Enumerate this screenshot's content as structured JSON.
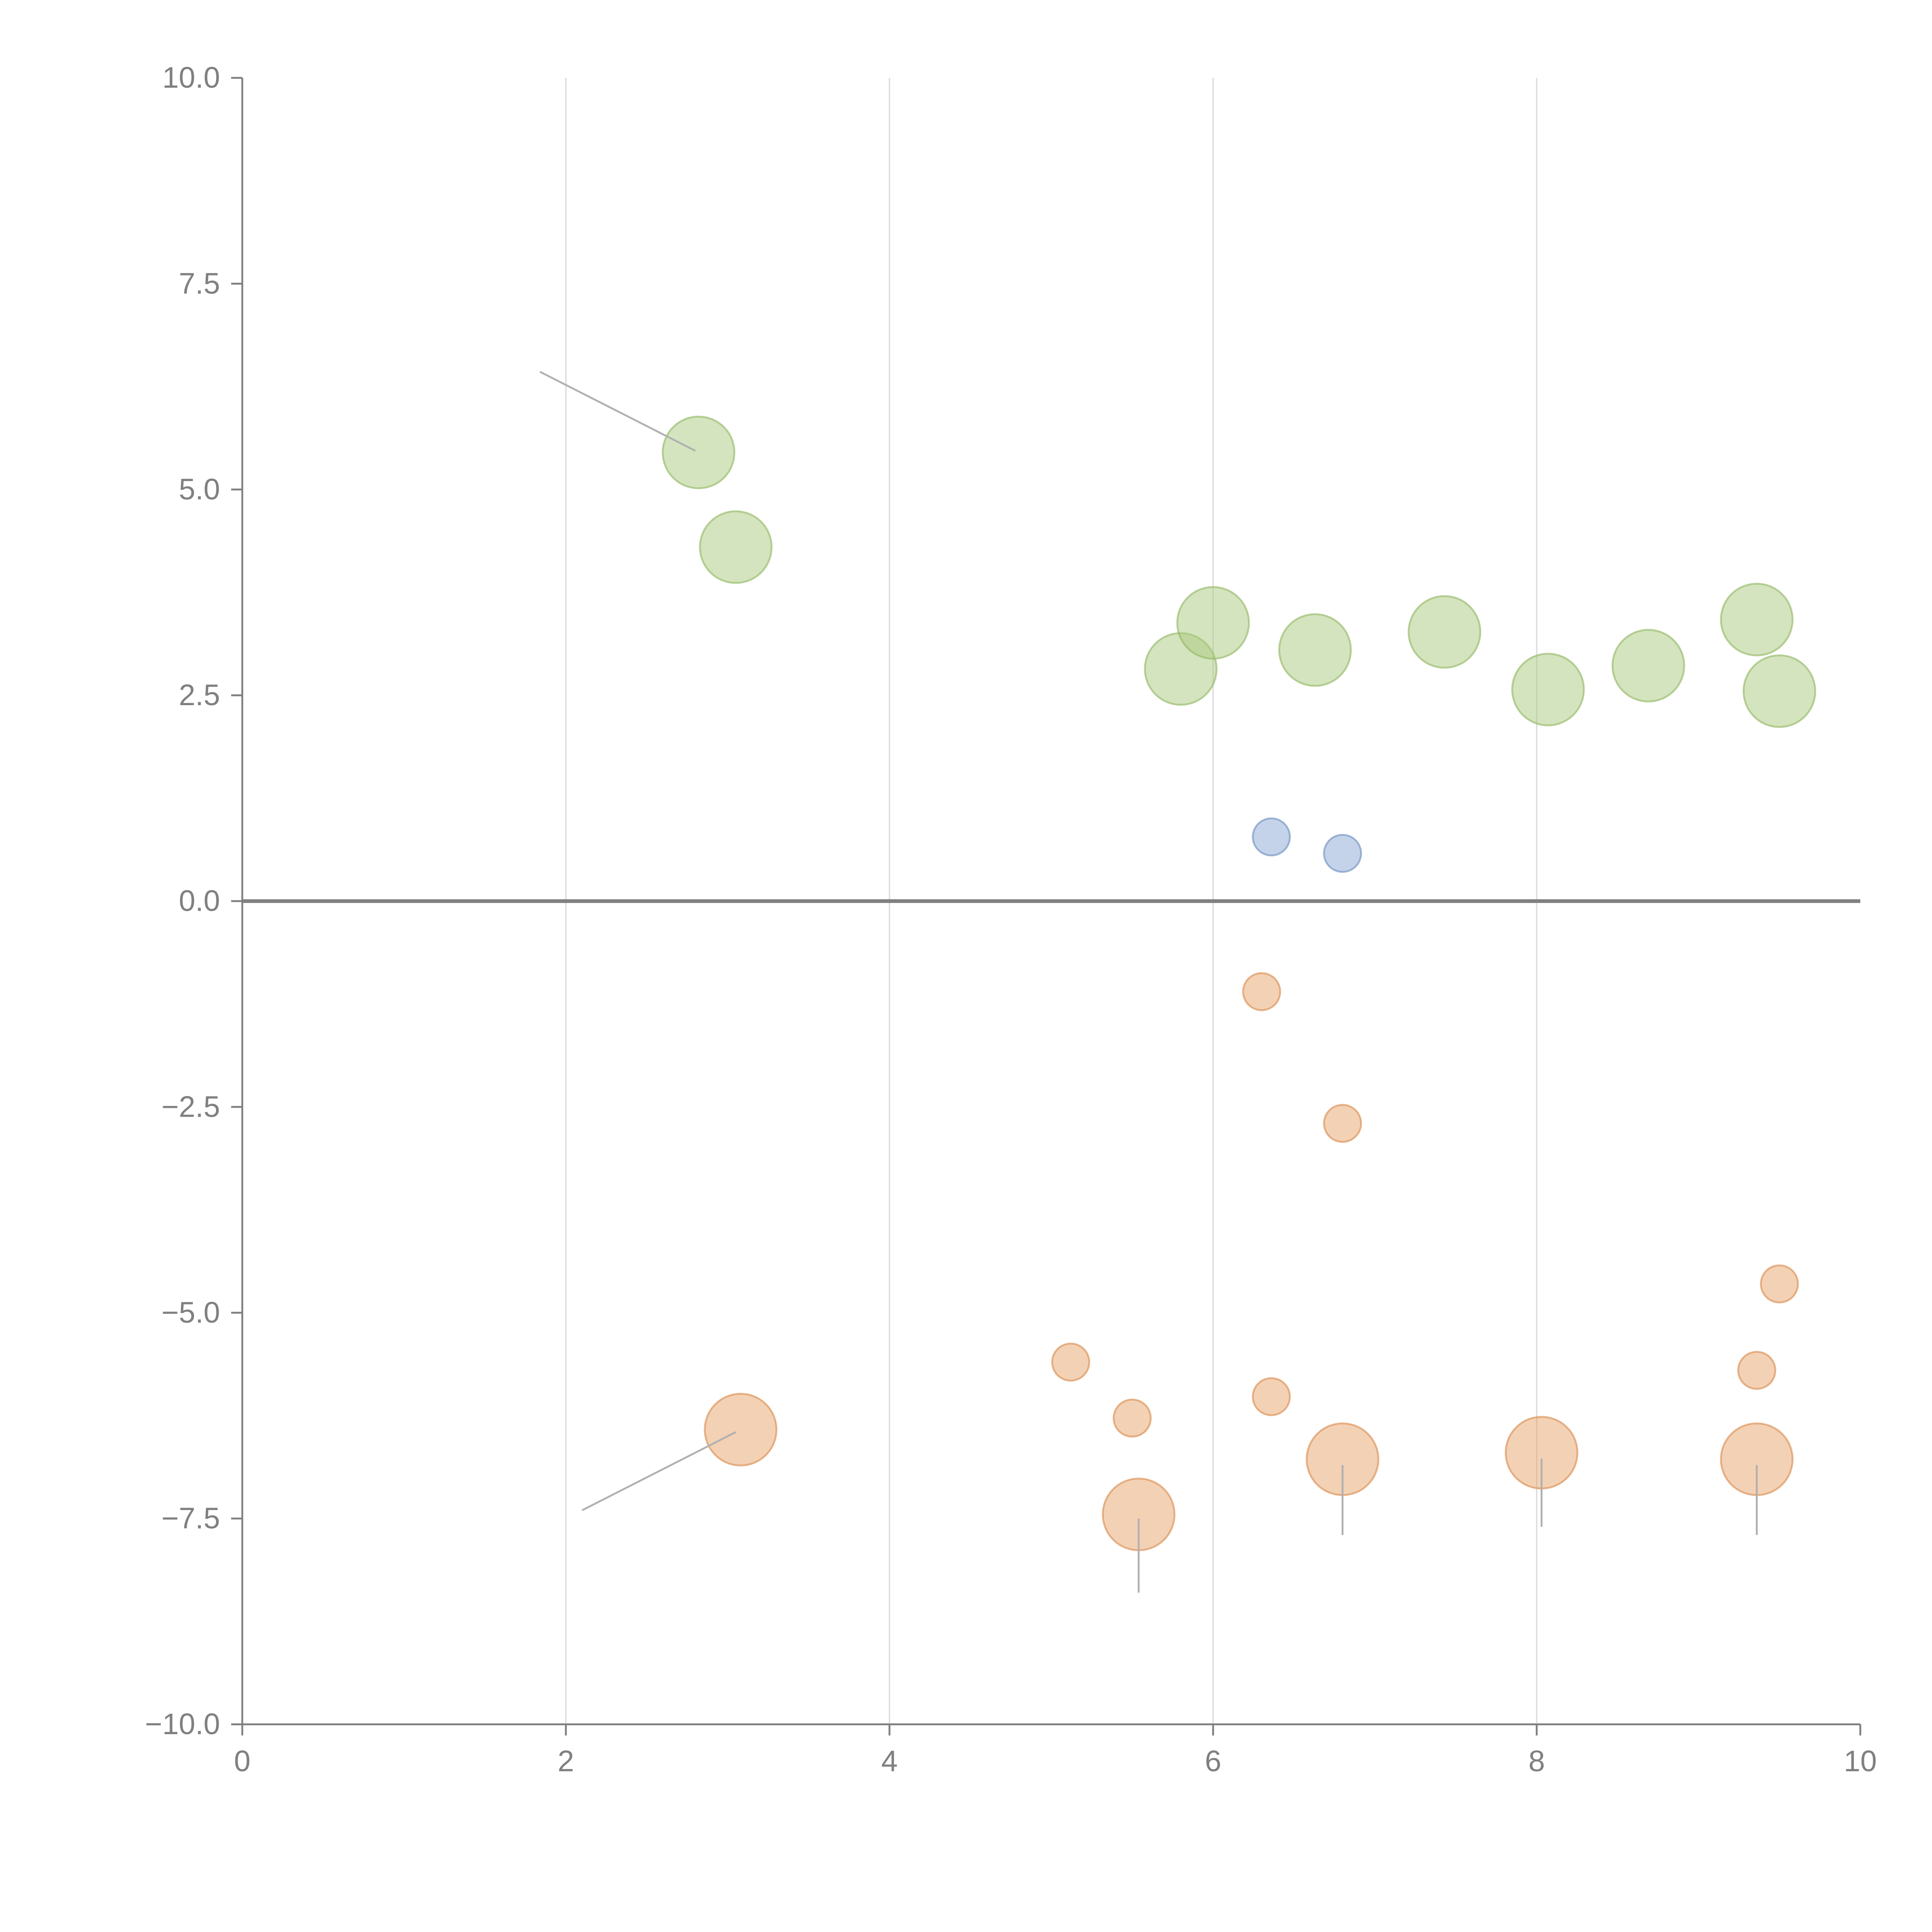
{
  "chart_data": {
    "type": "scatter",
    "title": "",
    "xlabel": "",
    "ylabel": "",
    "xlim": [
      0,
      10
    ],
    "ylim": [
      -10,
      10
    ],
    "grid": "vertical",
    "x_ticks": [
      "0",
      "2",
      "4",
      "6",
      "8",
      "10"
    ],
    "x_tick_values": [
      0,
      2,
      4,
      6,
      8,
      10
    ],
    "y_ticks": [
      "10.0",
      "7.5",
      "5.0",
      "2.5",
      "0.0",
      "−2.5",
      "−5.0",
      "−7.5",
      "−10.0"
    ],
    "y_tick_values": [
      10,
      7.5,
      5,
      2.5,
      0,
      -2.5,
      -5,
      -7.5,
      -10
    ],
    "colors": {
      "green": "#a9c97e",
      "green_edge": "#8fb560",
      "blue": "#8aa8d4",
      "blue_edge": "#6a8cc0",
      "orange": "#e8a46c",
      "orange_edge": "#d9894a",
      "grid": "#d9d9d9",
      "axis": "#808080",
      "zero_line": "#808080",
      "leader": "#b0b0b0"
    },
    "series": [
      {
        "name": "green",
        "color": "green",
        "points": [
          {
            "x": 2.82,
            "y": 5.45,
            "size": 3
          },
          {
            "x": 3.05,
            "y": 4.3,
            "size": 3
          },
          {
            "x": 5.8,
            "y": 2.82,
            "size": 3
          },
          {
            "x": 6.0,
            "y": 3.38,
            "size": 3
          },
          {
            "x": 6.63,
            "y": 3.05,
            "size": 3
          },
          {
            "x": 7.43,
            "y": 3.27,
            "size": 3
          },
          {
            "x": 8.07,
            "y": 2.57,
            "size": 3
          },
          {
            "x": 8.69,
            "y": 2.86,
            "size": 3
          },
          {
            "x": 9.36,
            "y": 3.42,
            "size": 3
          },
          {
            "x": 9.5,
            "y": 2.55,
            "size": 3
          }
        ]
      },
      {
        "name": "blue",
        "color": "blue",
        "points": [
          {
            "x": 6.36,
            "y": 0.78,
            "size": 1
          },
          {
            "x": 6.8,
            "y": 0.58,
            "size": 1
          }
        ]
      },
      {
        "name": "orange",
        "color": "orange",
        "points": [
          {
            "x": 6.3,
            "y": -1.1,
            "size": 1
          },
          {
            "x": 6.8,
            "y": -2.7,
            "size": 1
          },
          {
            "x": 9.5,
            "y": -4.65,
            "size": 1
          },
          {
            "x": 5.12,
            "y": -5.6,
            "size": 1
          },
          {
            "x": 5.5,
            "y": -6.28,
            "size": 1
          },
          {
            "x": 6.36,
            "y": -6.02,
            "size": 1
          },
          {
            "x": 9.36,
            "y": -5.7,
            "size": 1
          },
          {
            "x": 3.08,
            "y": -6.42,
            "size": 3
          },
          {
            "x": 5.54,
            "y": -7.45,
            "size": 3
          },
          {
            "x": 6.8,
            "y": -6.78,
            "size": 3
          },
          {
            "x": 8.03,
            "y": -6.7,
            "size": 3
          },
          {
            "x": 9.36,
            "y": -6.78,
            "size": 3
          }
        ]
      }
    ],
    "annotation_leaders": [
      {
        "x1": 1.84,
        "y1": 6.43,
        "x2": 2.8,
        "y2": 5.47,
        "color": "leader"
      },
      {
        "x1": 2.1,
        "y1": -7.4,
        "x2": 3.05,
        "y2": -6.45,
        "color": "leader"
      },
      {
        "x1": 5.54,
        "y1": -7.5,
        "x2": 5.54,
        "y2": -8.4,
        "color": "leader"
      },
      {
        "x1": 6.8,
        "y1": -6.85,
        "x2": 6.8,
        "y2": -7.7,
        "color": "leader"
      },
      {
        "x1": 8.03,
        "y1": -6.77,
        "x2": 8.03,
        "y2": -7.6,
        "color": "leader"
      },
      {
        "x1": 9.36,
        "y1": -6.85,
        "x2": 9.36,
        "y2": -7.7,
        "color": "leader"
      }
    ]
  }
}
